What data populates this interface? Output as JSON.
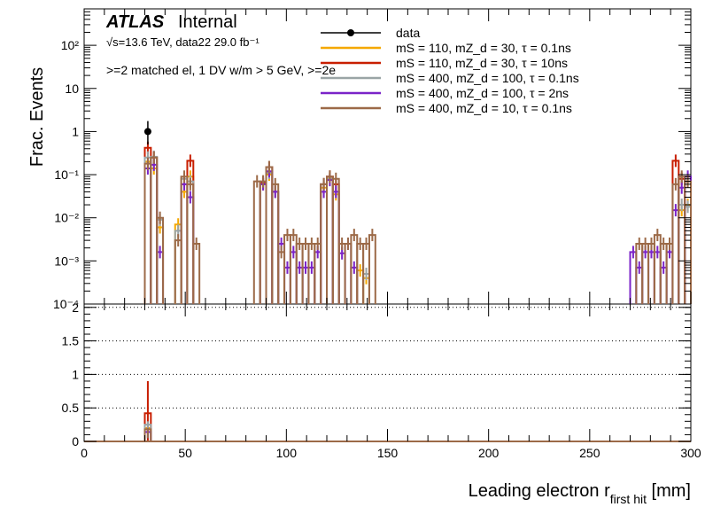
{
  "header": {
    "atlas_label": "ATLAS",
    "atlas_status": "Internal",
    "energy_line": "√s=13.6 TeV, data22 29.0 fb⁻¹",
    "selection_line": ">=2 matched el, 1 DV w/m > 5 GeV, >=2e"
  },
  "axes": {
    "upper_ylabel": "Frac. Events",
    "xlabel": "Leading electron r_first hit [mm]"
  },
  "legend": [
    {
      "label": "data",
      "color": "#000000",
      "marker": "point"
    },
    {
      "label": "mS = 110, mZ_d = 30, τ = 0.1ns",
      "color": "#f5a800",
      "marker": "line"
    },
    {
      "label": "mS = 110, mZ_d = 30, τ = 10ns",
      "color": "#c81e00",
      "marker": "line"
    },
    {
      "label": "mS = 400, mZ_d = 100, τ = 0.1ns",
      "color": "#9aa4a6",
      "marker": "line"
    },
    {
      "label": "mS = 400, mZ_d = 100, τ = 2ns",
      "color": "#7b23c8",
      "marker": "line"
    },
    {
      "label": "mS = 400, mZ_d = 10, τ = 0.1ns",
      "color": "#9c6a48",
      "marker": "line"
    }
  ],
  "chart_data": [
    {
      "type": "histogram",
      "panel": "main",
      "log_y": true,
      "xlim": [
        0,
        300
      ],
      "ylim": [
        0.0001,
        700
      ],
      "ylabel": "Frac. Events",
      "y_tick_labels": [
        "10⁻⁴",
        "10⁻³",
        "10⁻²",
        "10⁻¹",
        "1",
        "10",
        "10²"
      ],
      "bin_width": 3,
      "data_points": [
        {
          "x": 31.5,
          "y": 1.0,
          "err_low": 0.5,
          "err_high": 0.75
        }
      ],
      "series": [
        {
          "name": "mS = 110, mZ_d = 30, τ = 0.1ns",
          "color": "#f5a800",
          "bins": [
            [
              31.5,
              0.2
            ],
            [
              34.5,
              0.14
            ],
            [
              37.5,
              0.006
            ],
            [
              46.5,
              0.007
            ],
            [
              49.5,
              0.04
            ],
            [
              52.5,
              0.09
            ],
            [
              88.5,
              0.06
            ],
            [
              91.5,
              0.1
            ],
            [
              94.5,
              0.04
            ],
            [
              118.5,
              0.05
            ],
            [
              121.5,
              0.08
            ],
            [
              124.5,
              0.035
            ],
            [
              136.5,
              0.0006
            ],
            [
              139.5,
              0.0004
            ],
            [
              295.5,
              0.015
            ],
            [
              298.5,
              0.02
            ]
          ]
        },
        {
          "name": "mS = 110, mZ_d = 30, τ = 10ns",
          "color": "#c81e00",
          "bins": [
            [
              31.5,
              0.42
            ],
            [
              34.5,
              0.25
            ],
            [
              49.5,
              0.06
            ],
            [
              52.5,
              0.21
            ],
            [
              88.5,
              0.065
            ],
            [
              91.5,
              0.15
            ],
            [
              118.5,
              0.06
            ],
            [
              121.5,
              0.09
            ],
            [
              124.5,
              0.06
            ],
            [
              292.5,
              0.21
            ],
            [
              295.5,
              0.08
            ]
          ]
        },
        {
          "name": "mS = 400, mZ_d = 100, τ = 0.1ns",
          "color": "#9aa4a6",
          "bins": [
            [
              31.5,
              0.25
            ],
            [
              34.5,
              0.26
            ],
            [
              37.5,
              0.009
            ],
            [
              46.5,
              0.005
            ],
            [
              49.5,
              0.08
            ],
            [
              52.5,
              0.07
            ],
            [
              88.5,
              0.06
            ],
            [
              91.5,
              0.11
            ],
            [
              94.5,
              0.04
            ],
            [
              118.5,
              0.06
            ],
            [
              121.5,
              0.08
            ],
            [
              124.5,
              0.04
            ],
            [
              139.5,
              0.0005
            ],
            [
              295.5,
              0.02
            ],
            [
              298.5,
              0.018
            ]
          ]
        },
        {
          "name": "mS = 400, mZ_d = 100, τ = 2ns",
          "color": "#7b23c8",
          "bins": [
            [
              31.5,
              0.14
            ],
            [
              34.5,
              0.17
            ],
            [
              37.5,
              0.0016
            ],
            [
              49.5,
              0.06
            ],
            [
              52.5,
              0.03
            ],
            [
              88.5,
              0.06
            ],
            [
              91.5,
              0.12
            ],
            [
              94.5,
              0.04
            ],
            [
              97.5,
              0.0025
            ],
            [
              100.5,
              0.0007
            ],
            [
              103.5,
              0.0016
            ],
            [
              106.5,
              0.0007
            ],
            [
              109.5,
              0.0007
            ],
            [
              112.5,
              0.0007
            ],
            [
              115.5,
              0.0016
            ],
            [
              118.5,
              0.04
            ],
            [
              121.5,
              0.075
            ],
            [
              124.5,
              0.04
            ],
            [
              127.5,
              0.0015
            ],
            [
              130.5,
              0.0025
            ],
            [
              133.5,
              0.0007
            ],
            [
              271.5,
              0.0016
            ],
            [
              274.5,
              0.0007
            ],
            [
              277.5,
              0.0016
            ],
            [
              280.5,
              0.0016
            ],
            [
              283.5,
              0.0016
            ],
            [
              286.5,
              0.0007
            ],
            [
              289.5,
              0.0016
            ],
            [
              292.5,
              0.015
            ],
            [
              295.5,
              0.05
            ],
            [
              298.5,
              0.09
            ]
          ]
        },
        {
          "name": "mS = 400, mZ_d = 10, τ = 0.1ns",
          "color": "#9c6a48",
          "bins": [
            [
              31.5,
              0.18
            ],
            [
              34.5,
              0.25
            ],
            [
              37.5,
              0.01
            ],
            [
              46.5,
              0.003
            ],
            [
              49.5,
              0.09
            ],
            [
              52.5,
              0.06
            ],
            [
              55.5,
              0.0025
            ],
            [
              85.5,
              0.07
            ],
            [
              88.5,
              0.07
            ],
            [
              91.5,
              0.15
            ],
            [
              94.5,
              0.06
            ],
            [
              97.5,
              0.0016
            ],
            [
              100.5,
              0.004
            ],
            [
              103.5,
              0.004
            ],
            [
              106.5,
              0.0025
            ],
            [
              109.5,
              0.0025
            ],
            [
              112.5,
              0.0025
            ],
            [
              115.5,
              0.0025
            ],
            [
              118.5,
              0.06
            ],
            [
              121.5,
              0.09
            ],
            [
              124.5,
              0.08
            ],
            [
              127.5,
              0.0025
            ],
            [
              130.5,
              0.0025
            ],
            [
              133.5,
              0.004
            ],
            [
              136.5,
              0.0025
            ],
            [
              139.5,
              0.0025
            ],
            [
              142.5,
              0.004
            ],
            [
              274.5,
              0.0025
            ],
            [
              277.5,
              0.0025
            ],
            [
              280.5,
              0.0025
            ],
            [
              283.5,
              0.004
            ],
            [
              286.5,
              0.0025
            ],
            [
              289.5,
              0.0025
            ],
            [
              292.5,
              0.06
            ],
            [
              295.5,
              0.09
            ],
            [
              298.5,
              0.07
            ]
          ]
        }
      ]
    },
    {
      "type": "histogram",
      "panel": "ratio",
      "xlim": [
        0,
        300
      ],
      "ylim": [
        0,
        2.05
      ],
      "y_ticks": [
        0,
        0.5,
        1,
        1.5,
        2
      ],
      "y_tick_labels": [
        "0",
        "0.5",
        "1",
        "1.5",
        "2"
      ],
      "x_ticks": [
        0,
        50,
        100,
        150,
        200,
        250,
        300
      ],
      "x_tick_labels": [
        "0",
        "50",
        "100",
        "150",
        "200",
        "250",
        "300"
      ],
      "grid_lines": [
        0.5,
        1,
        1.5,
        2
      ],
      "bin_width": 3,
      "series": [
        {
          "name": "mS = 110, mZ_d = 30, τ = 0.1ns",
          "color": "#f5a800",
          "bins": [
            [
              31.5,
              0.2
            ]
          ],
          "err": [
            [
              31.5,
              0.05,
              0.2
            ]
          ]
        },
        {
          "name": "mS = 110, mZ_d = 30, τ = 10ns",
          "color": "#c81e00",
          "bins": [
            [
              31.5,
              0.42
            ]
          ],
          "err": [
            [
              31.5,
              0.0,
              0.9
            ]
          ]
        },
        {
          "name": "mS = 400, mZ_d = 100, τ = 0.1ns",
          "color": "#9aa4a6",
          "bins": [
            [
              31.5,
              0.25
            ]
          ],
          "err": [
            [
              31.5,
              0.1,
              0.3
            ]
          ]
        },
        {
          "name": "mS = 400, mZ_d = 100, τ = 2ns",
          "color": "#7b23c8",
          "bins": [
            [
              31.5,
              0.14
            ]
          ],
          "err": [
            [
              31.5,
              0.05,
              0.2
            ]
          ]
        },
        {
          "name": "mS = 400, mZ_d = 10, τ = 0.1ns",
          "color": "#9c6a48",
          "bins": [
            [
              31.5,
              0.18
            ]
          ],
          "err": [
            [
              31.5,
              0.05,
              0.2
            ]
          ]
        }
      ]
    }
  ]
}
